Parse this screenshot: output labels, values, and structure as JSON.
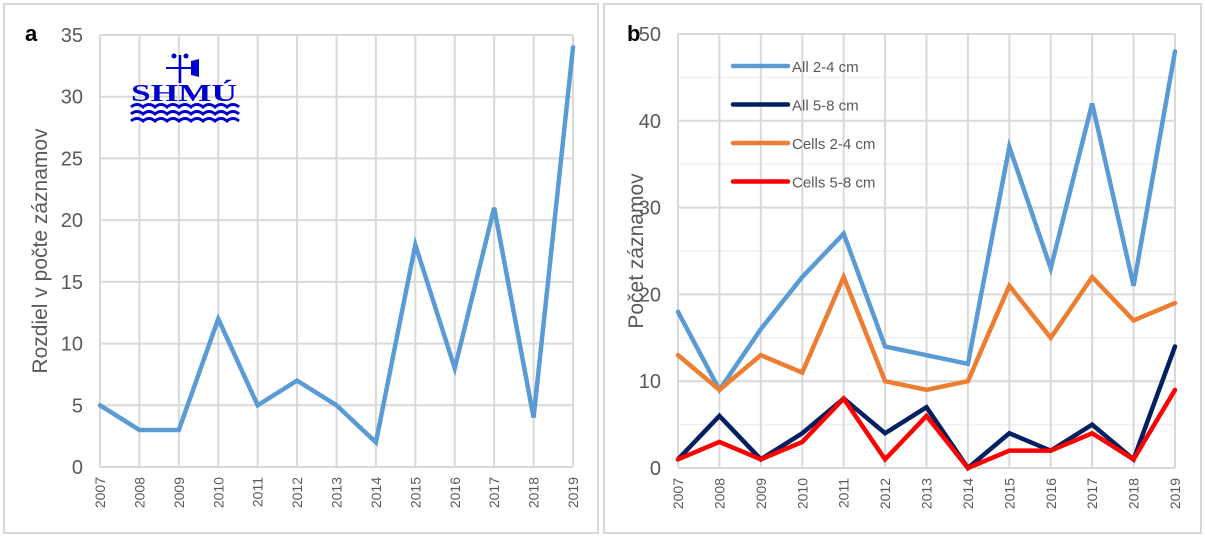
{
  "chart_data": [
    {
      "panel_label": "a",
      "type": "line",
      "title": "",
      "xlabel": "",
      "ylabel": "Rozdiel v počte záznamov",
      "ylim": [
        0,
        35
      ],
      "yticks": [
        0,
        5,
        10,
        15,
        20,
        25,
        30,
        35
      ],
      "grid": true,
      "logo_text": "SHMÚ",
      "x": [
        "2007",
        "2008",
        "2009",
        "2010",
        "2011",
        "2012",
        "2013",
        "2014",
        "2015",
        "2016",
        "2017",
        "2018",
        "2019"
      ],
      "series": [
        {
          "name": "Rozdiel",
          "color": "#5b9bd5",
          "values": [
            5,
            3,
            3,
            12,
            5,
            7,
            5,
            2,
            18,
            8,
            21,
            4,
            34
          ]
        }
      ]
    },
    {
      "panel_label": "b",
      "type": "line",
      "title": "",
      "xlabel": "",
      "ylabel": "Počet záznamov",
      "ylim": [
        0,
        50
      ],
      "yticks": [
        0,
        10,
        20,
        30,
        40,
        50
      ],
      "grid": true,
      "legend_position": "top-left",
      "x": [
        "2007",
        "2008",
        "2009",
        "2010",
        "2011",
        "2012",
        "2013",
        "2014",
        "2015",
        "2016",
        "2017",
        "2018",
        "2019"
      ],
      "series": [
        {
          "name": "All 2-4 cm",
          "color": "#5b9bd5",
          "values": [
            18,
            9,
            16,
            22,
            27,
            14,
            13,
            12,
            37,
            23,
            42,
            21,
            48
          ]
        },
        {
          "name": "All 5-8 cm",
          "color": "#002060",
          "values": [
            1,
            6,
            1,
            4,
            8,
            4,
            7,
            0,
            4,
            2,
            5,
            1,
            14
          ]
        },
        {
          "name": "Cells 2-4 cm",
          "color": "#ed7d31",
          "values": [
            13,
            9,
            13,
            11,
            22,
            10,
            9,
            10,
            21,
            15,
            22,
            17,
            19
          ]
        },
        {
          "name": "Cells 5-8 cm",
          "color": "#ff0000",
          "values": [
            1,
            3,
            1,
            3,
            8,
            1,
            6,
            0,
            2,
            2,
            4,
            1,
            9
          ]
        }
      ]
    }
  ]
}
